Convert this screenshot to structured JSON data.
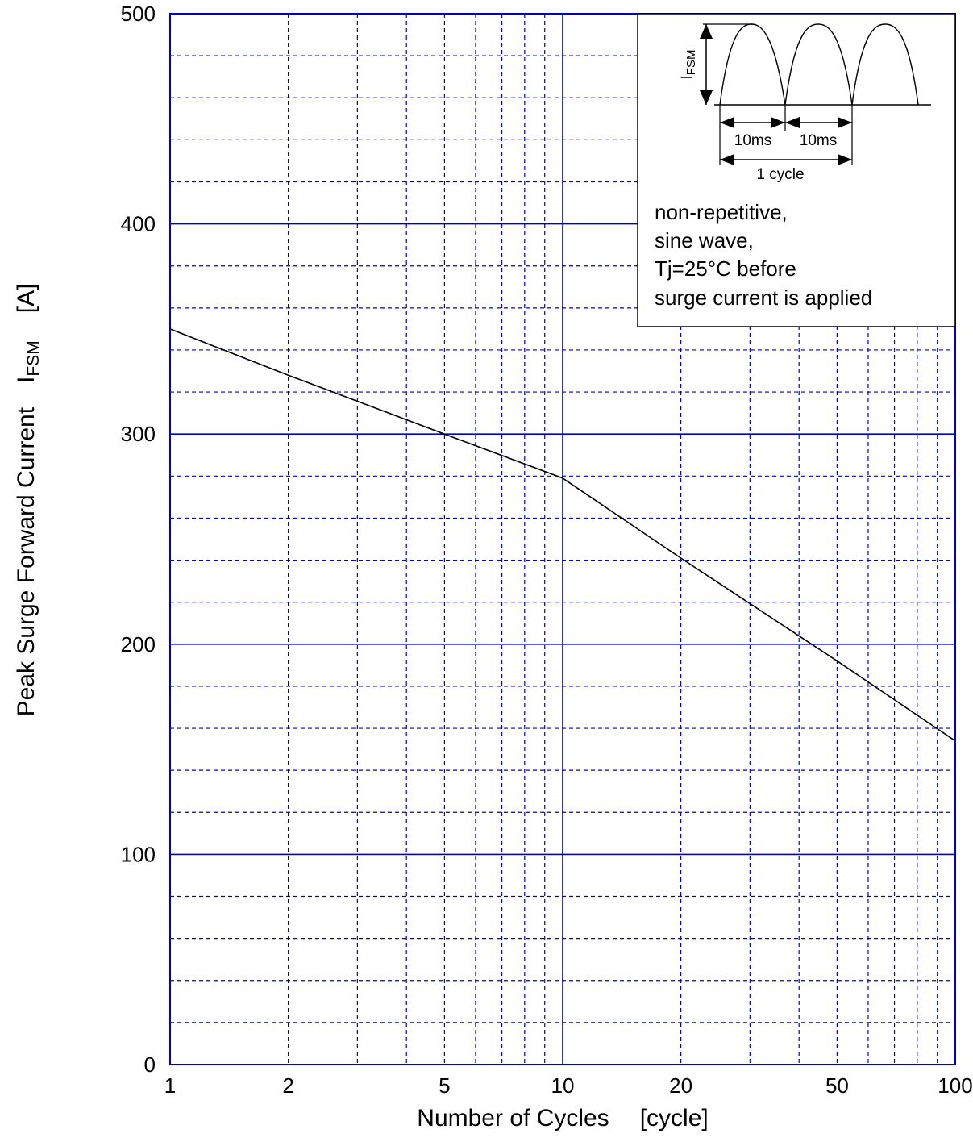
{
  "chart_data": {
    "type": "line",
    "xscale": "log",
    "xlim": [
      1,
      100
    ],
    "ylim": [
      0,
      500
    ],
    "xlabel": "Number of Cycles",
    "xunit": "[cycle]",
    "ylabel": "Peak Surge Forward  Current",
    "ysymbol_main": "I",
    "ysymbol_sub": "FSM",
    "yunit": "[A]",
    "x_ticks": [
      {
        "value": 1,
        "label": "1"
      },
      {
        "value": 2,
        "label": "2"
      },
      {
        "value": 5,
        "label": "5"
      },
      {
        "value": 10,
        "label": "10"
      },
      {
        "value": 20,
        "label": "20"
      },
      {
        "value": 50,
        "label": "50"
      },
      {
        "value": 100,
        "label": "100"
      }
    ],
    "y_ticks": [
      {
        "value": 0,
        "label": "0"
      },
      {
        "value": 100,
        "label": "100"
      },
      {
        "value": 200,
        "label": "200"
      },
      {
        "value": 300,
        "label": "300"
      },
      {
        "value": 400,
        "label": "400"
      },
      {
        "value": 500,
        "label": "500"
      }
    ],
    "x_minor_grid": [
      3,
      4,
      6,
      7,
      8,
      9,
      30,
      40,
      60,
      70,
      80,
      90
    ],
    "y_minor_step": 20,
    "grid": true,
    "grid_color": "#0000cc",
    "series": [
      {
        "color": "#000000",
        "x": [
          1,
          2,
          5,
          10,
          20,
          50,
          100
        ],
        "y": [
          350,
          328,
          300,
          279,
          241,
          192,
          154
        ]
      }
    ],
    "inset": {
      "position": "top-right",
      "symbol_main": "I",
      "symbol_sub": "FSM",
      "half_cycle_1": "10ms",
      "half_cycle_2": "10ms",
      "cycle_label": "1 cycle",
      "notes": [
        "non-repetitive,",
        "sine wave,",
        "Tj=25°C before",
        "surge current is applied"
      ]
    }
  }
}
